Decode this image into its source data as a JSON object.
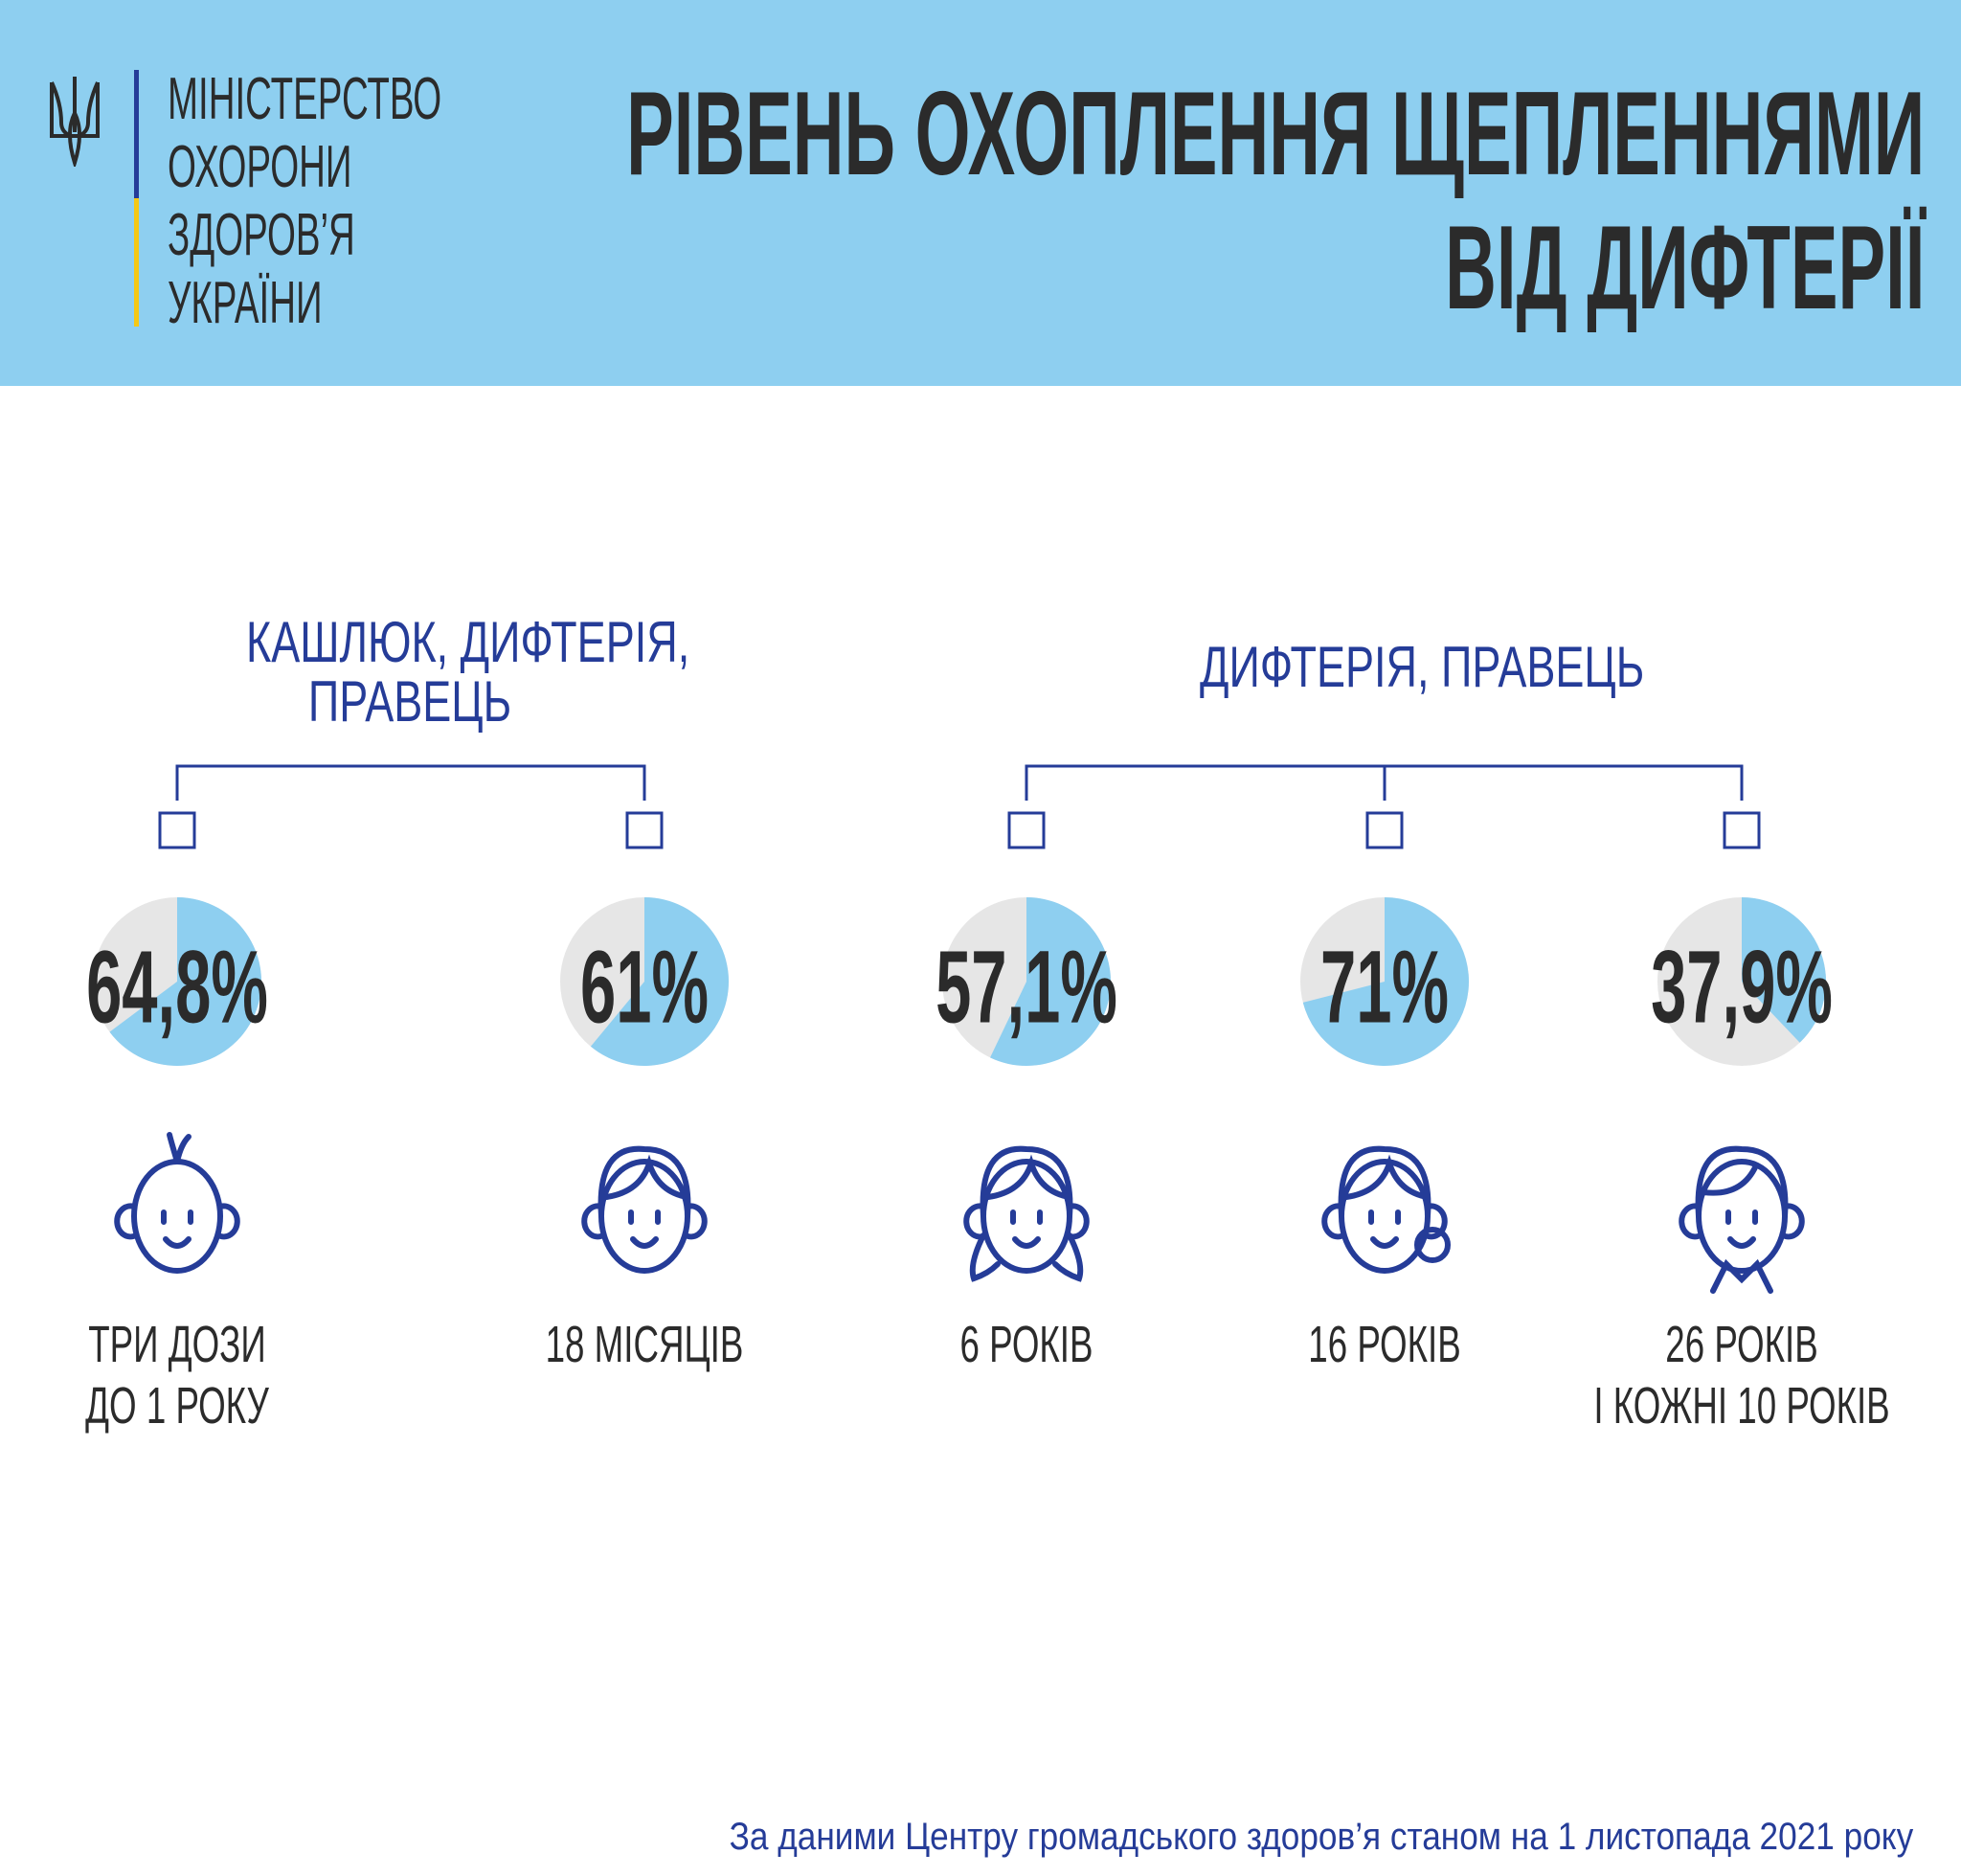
{
  "header": {
    "ministry_lines": [
      "МІНІСТЕРСТВО",
      "ОХОРОНИ",
      "ЗДОРОВ’Я",
      "УКРАЇНИ"
    ],
    "title_lines": [
      "РІВЕНЬ ОХОПЛЕННЯ ЩЕПЛЕННЯМИ",
      "ВІД ДИФТЕРІЇ"
    ],
    "background_color": "#8ecff0"
  },
  "groups": [
    {
      "title_lines": [
        "КАШЛЮК, ДИФТЕРІЯ,",
        "ПРАВЕЦЬ"
      ]
    },
    {
      "title_lines": [
        "ДИФТЕРІЯ, ПРАВЕЦЬ"
      ]
    }
  ],
  "chart_data": {
    "type": "pie",
    "colors": {
      "covered": "#8ecff0",
      "remaining": "#e6e6e6",
      "text": "#2b2b2b",
      "accent": "#253c98"
    },
    "items": [
      {
        "value": 64.8,
        "label": "64,8%",
        "caption": [
          "ТРИ ДОЗИ",
          "ДО 1 РОКУ"
        ],
        "icon": "baby-face-icon",
        "group": 0
      },
      {
        "value": 61,
        "label": "61%",
        "caption": [
          "18 МІСЯЦІВ"
        ],
        "icon": "toddler-face-icon",
        "group": 0
      },
      {
        "value": 57.1,
        "label": "57,1%",
        "caption": [
          "6 РОКІВ"
        ],
        "icon": "girl-face-icon",
        "group": 1
      },
      {
        "value": 71,
        "label": "71%",
        "caption": [
          "16 РОКІВ"
        ],
        "icon": "teen-girl-face-icon",
        "group": 1
      },
      {
        "value": 37.9,
        "label": "37,9%",
        "caption": [
          "26 РОКІВ",
          "І КОЖНІ 10 РОКІВ"
        ],
        "icon": "adult-face-icon",
        "group": 1
      }
    ]
  },
  "footer": "За даними Центру громадського здоров’я станом на 1 листопада 2021 року"
}
